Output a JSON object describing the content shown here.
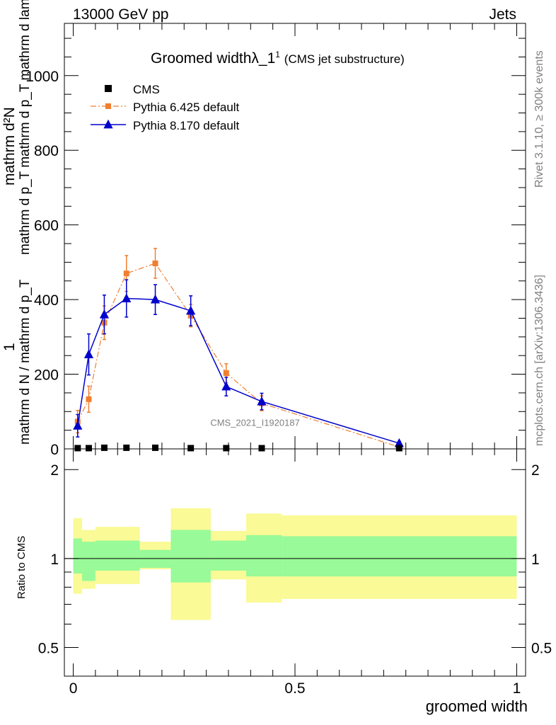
{
  "header": {
    "left": "13000 GeV pp",
    "right": "Jets"
  },
  "side_text": {
    "rivet": "Rivet 3.1.10, ≥ 300k events",
    "site": "mcplots.cern.ch [arXiv:1306.3436]"
  },
  "watermark": "CMS_2021_I1920187",
  "colors": {
    "cms": "#000000",
    "pythia6": "#f07f30",
    "pythia8": "#0000cc",
    "band_inner": "#98fa98",
    "band_outer": "#fafa96"
  },
  "chart_data": [
    {
      "type": "line",
      "title": "Groomed widthλ_1",
      "title_superscript": "1",
      "subtitle": "(CMS jet substructure)",
      "ylabel_top": "mathrm d²N",
      "ylabel_top_line2": "mathrm d p_T mathrm d p_T mathrm d lambda",
      "ylabel_1": "1",
      "ylabel_bottom": "mathrm d N / mathrm d p_T",
      "xlim": [
        -0.02,
        1.02
      ],
      "ylim": [
        0,
        1140
      ],
      "yticks": [
        0,
        200,
        400,
        600,
        800,
        1000
      ],
      "ytick_labels": [
        "0",
        "200",
        "400",
        "600",
        "800",
        "1000"
      ],
      "legend": [
        {
          "name": "CMS",
          "marker": "square"
        },
        {
          "name": "Pythia 6.425 default",
          "marker": "square",
          "style": "dashdot"
        },
        {
          "name": "Pythia 8.170 default",
          "marker": "triangle",
          "style": "solid"
        }
      ],
      "legend_placement": "top-left",
      "series": [
        {
          "name": "CMS",
          "x": [
            0.01,
            0.035,
            0.07,
            0.12,
            0.185,
            0.265,
            0.345,
            0.425,
            0.735
          ],
          "y": [
            2,
            2,
            3,
            3,
            3,
            2,
            2,
            1,
            0
          ]
        },
        {
          "name": "Pythia 6.425 default",
          "x": [
            0.01,
            0.035,
            0.07,
            0.12,
            0.185,
            0.265,
            0.345,
            0.425,
            0.735
          ],
          "y": [
            73,
            133,
            338,
            470,
            497,
            357,
            203,
            122,
            5
          ],
          "err": [
            30,
            35,
            45,
            48,
            40,
            30,
            25,
            20,
            5
          ]
        },
        {
          "name": "Pythia 8.170 default",
          "x": [
            0.01,
            0.035,
            0.07,
            0.12,
            0.185,
            0.265,
            0.345,
            0.425,
            0.735
          ],
          "y": [
            62,
            253,
            360,
            403,
            400,
            370,
            167,
            127,
            15
          ],
          "err": [
            30,
            55,
            52,
            50,
            40,
            40,
            25,
            22,
            5
          ]
        }
      ]
    },
    {
      "type": "area",
      "ylabel": "Ratio to CMS",
      "xlabel": "groomed width",
      "xlim": [
        -0.02,
        1.02
      ],
      "ylim": [
        0.4,
        2.35
      ],
      "log_y": true,
      "yticks": [
        0.5,
        1,
        2
      ],
      "ytick_labels": [
        "0.5",
        "1",
        "2"
      ],
      "xticks": [
        0,
        0.5,
        1
      ],
      "xtick_labels": [
        "0",
        "0.5",
        "1"
      ],
      "reference_line": 1,
      "bands": [
        {
          "x0": 0.0,
          "x1": 0.02,
          "inner": [
            0.89,
            1.17
          ],
          "outer": [
            0.76,
            1.37
          ]
        },
        {
          "x0": 0.02,
          "x1": 0.05,
          "inner": [
            0.84,
            1.14
          ],
          "outer": [
            0.79,
            1.25
          ]
        },
        {
          "x0": 0.05,
          "x1": 0.09,
          "inner": [
            0.91,
            1.15
          ],
          "outer": [
            0.82,
            1.28
          ]
        },
        {
          "x0": 0.09,
          "x1": 0.15,
          "inner": [
            0.91,
            1.15
          ],
          "outer": [
            0.82,
            1.28
          ]
        },
        {
          "x0": 0.15,
          "x1": 0.22,
          "inner": [
            0.93,
            1.07
          ],
          "outer": [
            0.92,
            1.14
          ]
        },
        {
          "x0": 0.22,
          "x1": 0.31,
          "inner": [
            0.83,
            1.25
          ],
          "outer": [
            0.62,
            1.48
          ]
        },
        {
          "x0": 0.31,
          "x1": 0.39,
          "inner": [
            0.91,
            1.15
          ],
          "outer": [
            0.85,
            1.24
          ]
        },
        {
          "x0": 0.39,
          "x1": 0.47,
          "inner": [
            0.87,
            1.2
          ],
          "outer": [
            0.71,
            1.42
          ]
        },
        {
          "x0": 0.47,
          "x1": 1.0,
          "inner": [
            0.87,
            1.19
          ],
          "outer": [
            0.73,
            1.4
          ]
        }
      ]
    }
  ]
}
